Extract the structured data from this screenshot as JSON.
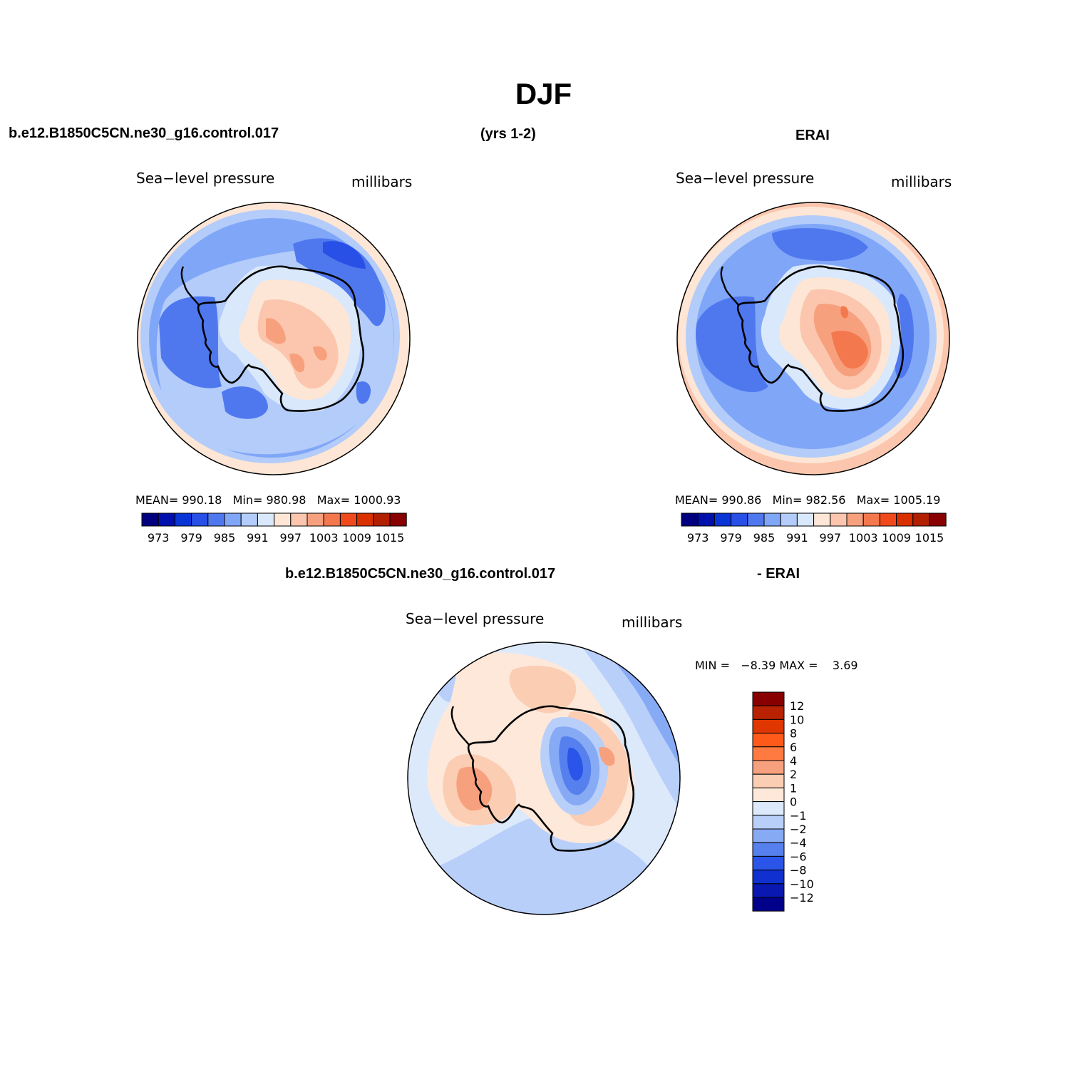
{
  "page_title": "DJF",
  "top_headers": {
    "case_name": "b.e12.B1850C5CN.ne30_g16.control.017",
    "years": "(yrs 1-2)",
    "obs_name": "ERAI"
  },
  "panels": [
    {
      "field": "Sea−level pressure",
      "units": "millibars",
      "stats": {
        "mean_label": "MEAN=",
        "mean": "990.18",
        "min_label": "Min=",
        "min": "980.98",
        "max_label": "Max=",
        "max": "1000.93"
      }
    },
    {
      "field": "Sea−level pressure",
      "units": "millibars",
      "stats": {
        "mean_label": "MEAN=",
        "mean": "990.86",
        "min_label": "Min=",
        "min": "982.56",
        "max_label": "Max=",
        "max": "1005.19"
      }
    }
  ],
  "colorbar": {
    "colors": [
      "#00007f",
      "#0010ad",
      "#0a35d6",
      "#2850e6",
      "#4f78ef",
      "#80a6f7",
      "#b3ccfa",
      "#d9e8fb",
      "#fde6d5",
      "#fbc6ad",
      "#f7a07e",
      "#f4784e",
      "#f04a1c",
      "#da3000",
      "#b22000",
      "#880000"
    ],
    "tick_labels": [
      "973",
      "979",
      "985",
      "991",
      "997",
      "1003",
      "1009",
      "1015"
    ]
  },
  "diff_header": {
    "case_name": "b.e12.B1850C5CN.ne30_g16.control.017",
    "minus_obs": "- ERAI"
  },
  "diff_panel": {
    "field": "Sea−level pressure",
    "units": "millibars",
    "min_label": "MIN =",
    "min": "−8.39",
    "max_label": "MAX =",
    "max": "3.69",
    "colorbar_colors_top_to_bottom": [
      "#880000",
      "#b82200",
      "#e03600",
      "#ff5a1a",
      "#ff7a40",
      "#f7a07e",
      "#fbcdb3",
      "#fde8da",
      "#dce9fb",
      "#b8cffa",
      "#87aaf5",
      "#5580ee",
      "#2a55e8",
      "#1030d0",
      "#0818b0",
      "#00008a"
    ],
    "colorbar_labels": [
      "12",
      "10",
      "8",
      "6",
      "4",
      "2",
      "1",
      "0",
      "−1",
      "−2",
      "−4",
      "−6",
      "−8",
      "−10",
      "−12"
    ]
  },
  "colors": {
    "land_outline": "#000000",
    "disc_outline": "#000000"
  }
}
